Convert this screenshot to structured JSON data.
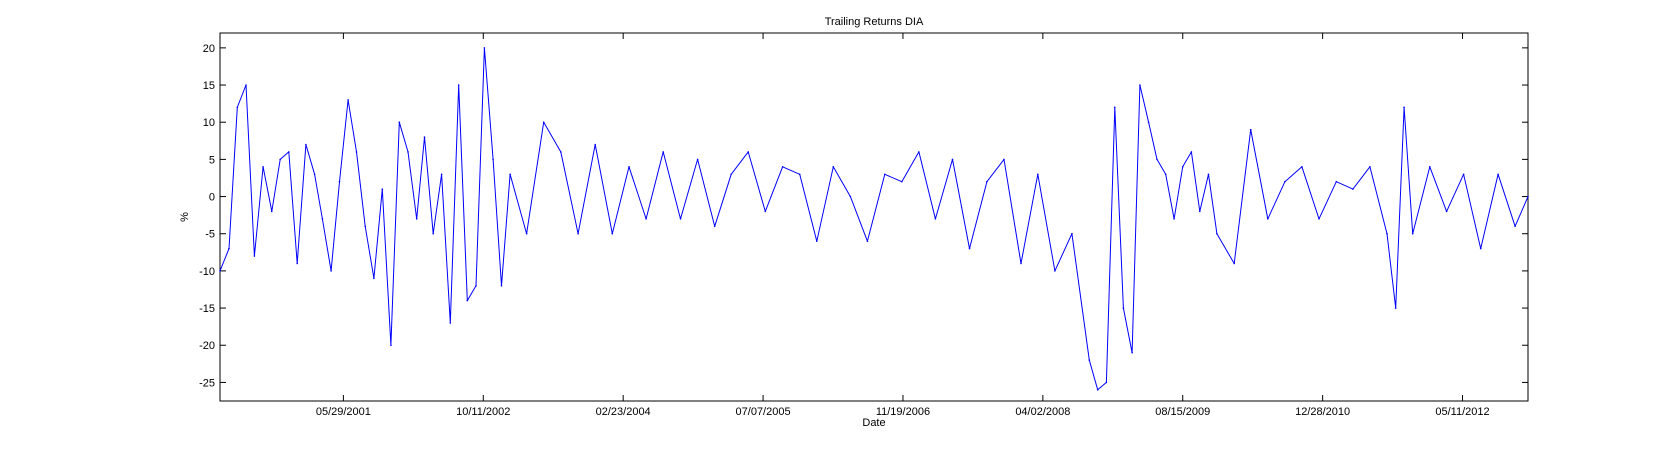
{
  "chart_data": {
    "type": "line",
    "title": "Trailing Returns DIA",
    "xlabel": "Date",
    "ylabel": "%",
    "x_range": [
      "2000-03-14",
      "2012-12-31"
    ],
    "x_ticks": [
      "05/29/2001",
      "10/11/2002",
      "02/23/2004",
      "07/07/2005",
      "11/19/2006",
      "04/02/2008",
      "08/15/2009",
      "12/28/2010",
      "05/11/2012"
    ],
    "ylim": [
      -27.5,
      22
    ],
    "y_ticks": [
      20,
      15,
      10,
      5,
      0,
      -5,
      -10,
      -15,
      -20,
      -25
    ],
    "grid": false,
    "legend": "none",
    "line_color": "#0000ff",
    "series": [
      {
        "x": [
          "2000-03-14",
          "2000-04-15",
          "2000-05-15",
          "2000-06-15",
          "2000-07-15",
          "2000-08-15",
          "2000-09-15",
          "2000-10-15",
          "2000-11-15",
          "2000-12-15",
          "2001-01-15",
          "2001-02-15",
          "2001-03-15",
          "2001-04-15",
          "2001-05-15",
          "2001-06-15",
          "2001-07-15",
          "2001-08-15",
          "2001-09-15",
          "2001-10-15",
          "2001-11-15",
          "2001-12-15",
          "2002-01-15",
          "2002-02-15",
          "2002-03-15",
          "2002-04-15",
          "2002-05-15",
          "2002-06-15",
          "2002-07-15",
          "2002-08-15",
          "2002-09-15",
          "2002-10-15",
          "2002-11-15",
          "2002-12-15",
          "2003-01-15",
          "2003-03-15",
          "2003-05-15",
          "2003-07-15",
          "2003-09-15",
          "2003-11-15",
          "2004-01-15",
          "2004-03-15",
          "2004-05-15",
          "2004-07-15",
          "2004-09-15",
          "2004-11-15",
          "2005-01-15",
          "2005-03-15",
          "2005-05-15",
          "2005-07-15",
          "2005-09-15",
          "2005-11-15",
          "2006-01-15",
          "2006-03-15",
          "2006-05-15",
          "2006-07-15",
          "2006-09-15",
          "2006-11-15",
          "2007-01-15",
          "2007-03-15",
          "2007-05-15",
          "2007-07-15",
          "2007-09-15",
          "2007-11-15",
          "2008-01-15",
          "2008-03-15",
          "2008-05-15",
          "2008-07-15",
          "2008-09-15",
          "2008-10-15",
          "2008-11-15",
          "2008-12-15",
          "2009-01-15",
          "2009-02-15",
          "2009-03-15",
          "2009-04-15",
          "2009-05-15",
          "2009-06-15",
          "2009-07-15",
          "2009-08-15",
          "2009-09-15",
          "2009-10-15",
          "2009-11-15",
          "2009-12-15",
          "2010-02-15",
          "2010-04-15",
          "2010-06-15",
          "2010-08-15",
          "2010-10-15",
          "2010-12-15",
          "2011-02-15",
          "2011-04-15",
          "2011-06-15",
          "2011-08-15",
          "2011-09-15",
          "2011-10-15",
          "2011-11-15",
          "2012-01-15",
          "2012-03-15",
          "2012-05-15",
          "2012-07-15",
          "2012-09-15",
          "2012-11-15",
          "2012-12-31"
        ],
        "values": [
          -10,
          -7,
          12,
          15,
          -8,
          4,
          -2,
          5,
          6,
          -9,
          7,
          3,
          -3,
          -10,
          2,
          13,
          6,
          -4,
          -11,
          1,
          -20,
          10,
          6,
          -3,
          8,
          -5,
          3,
          -17,
          15,
          -14,
          -12,
          20,
          5,
          -12,
          3,
          -5,
          10,
          6,
          -5,
          7,
          -5,
          4,
          -3,
          6,
          -3,
          5,
          -4,
          3,
          6,
          -2,
          4,
          3,
          -6,
          4,
          0,
          -6,
          3,
          2,
          6,
          -3,
          5,
          -7,
          2,
          5,
          -9,
          3,
          -10,
          -5,
          -22,
          -26,
          -25,
          12,
          -15,
          -21,
          15,
          10,
          5,
          3,
          -3,
          4,
          6,
          -2,
          3,
          -5,
          -9,
          9,
          -3,
          2,
          4,
          -3,
          2,
          1,
          4,
          -5,
          -15,
          12,
          -5,
          4,
          -2,
          3,
          -7,
          3,
          -4,
          0
        ]
      }
    ]
  }
}
